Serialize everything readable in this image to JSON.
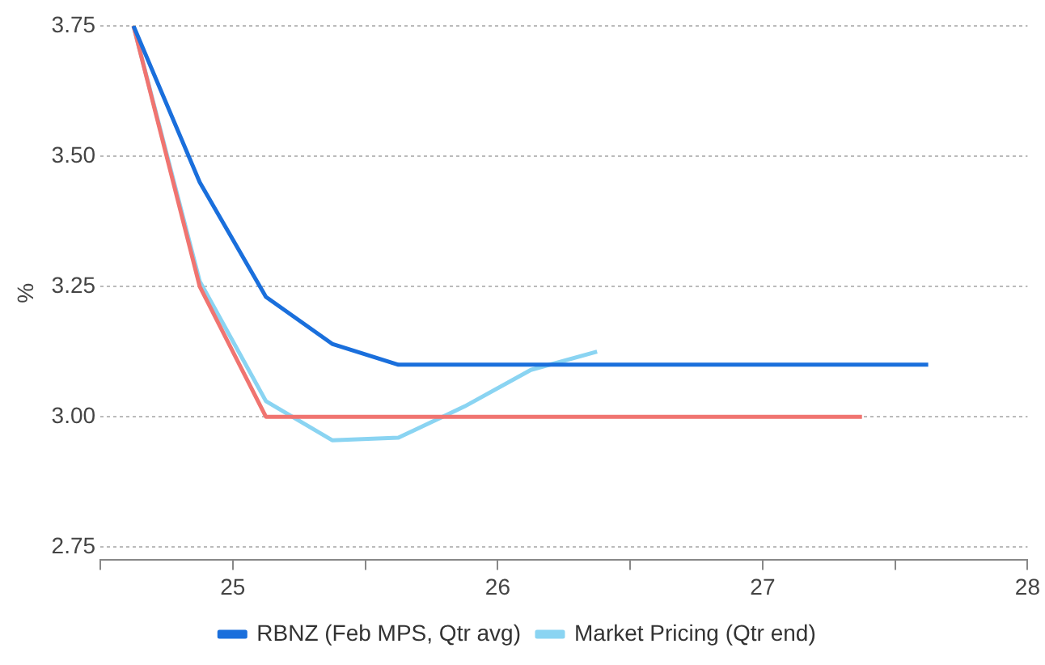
{
  "chart_data": {
    "type": "line",
    "ylabel": "%",
    "xlim": [
      24.5,
      28
    ],
    "xticks": [
      {
        "value": 24.5,
        "label": null
      },
      25,
      {
        "value": 25.5,
        "label": null
      },
      26,
      {
        "value": 26.5,
        "label": null
      },
      27,
      {
        "value": 27.5,
        "label": null
      },
      28
    ],
    "ylim": [
      2.725,
      3.75
    ],
    "yticks": [
      2.75,
      {
        "value": 3.0,
        "label": "3.00"
      },
      3.25,
      {
        "value": 3.5,
        "label": "3.50"
      },
      3.75
    ],
    "grid": "y",
    "legend": "bottom",
    "marker": "none",
    "line_style": "solid",
    "series": [
      {
        "name": "RBNZ (Feb MPS, Qtr avg)",
        "color": "#1a6fdc",
        "x": [
          24.625,
          24.875,
          25.125,
          25.375,
          25.625,
          25.875,
          26.125,
          26.375,
          26.625,
          26.875,
          27.125,
          27.375,
          27.625
        ],
        "values": [
          3.75,
          3.45,
          3.23,
          3.14,
          3.1,
          3.1,
          3.1,
          3.1,
          3.1,
          3.1,
          3.1,
          3.1,
          3.1
        ]
      },
      {
        "color": "#f07470",
        "x": [
          24.625,
          24.875,
          25.125,
          25.375,
          25.625,
          25.875,
          26.125,
          26.375,
          26.625,
          26.875,
          27.125,
          27.375
        ],
        "values": [
          3.75,
          3.25,
          3.0,
          3.0,
          3.0,
          3.0,
          3.0,
          3.0,
          3.0,
          3.0,
          3.0,
          3.0
        ]
      },
      {
        "name": "Market Pricing (Qtr end)",
        "color": "#8ad4f2",
        "x": [
          24.625,
          24.875,
          25.125,
          25.375,
          25.625,
          25.875,
          26.125,
          26.375
        ],
        "values": [
          3.75,
          3.26,
          3.03,
          2.955,
          2.96,
          3.02,
          3.09,
          3.125
        ]
      }
    ]
  }
}
